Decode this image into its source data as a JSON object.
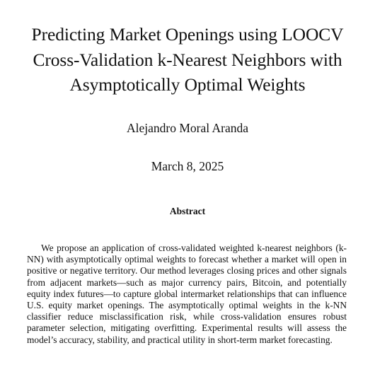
{
  "paper": {
    "title": "Predicting Market Openings using LOOCV Cross-Validation k-Nearest Neighbors with Asymptotically Optimal Weights",
    "author": "Alejandro Moral Aranda",
    "date": "March 8, 2025",
    "abstract_heading": "Abstract",
    "abstract_text": "We propose an application of cross-validated weighted k-nearest neigh­bors (k-NN) with asymptotically optimal weights to forecast whether a market will open in positive or negative territory. Our method leverages closing prices and other signals from adjacent markets—such as major currency pairs, Bitcoin, and potentially equity index futures—to capture global intermarket relationships that can influence U.S. equity market openings. The asymptotically optimal weights in the k-NN classifier re­duce misclassification risk, while cross-validation ensures robust parame­ter selection, mitigating overfitting. Experimental results will assess the model’s accuracy, stability, and practical utility in short-term market fore­casting."
  }
}
